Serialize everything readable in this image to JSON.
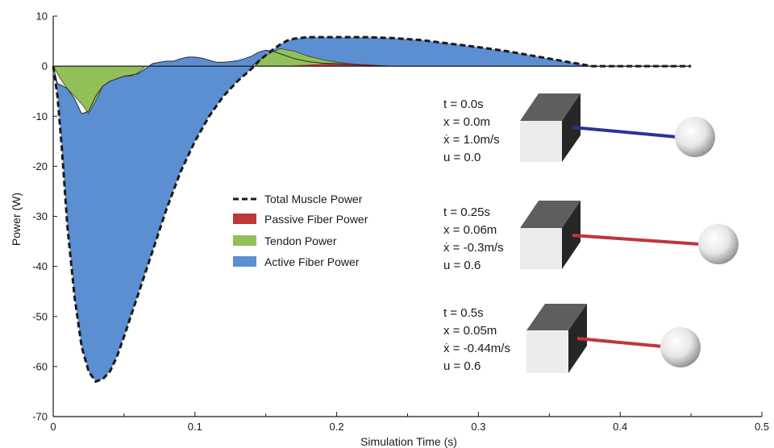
{
  "chart_data": {
    "type": "area",
    "xlabel": "Simulation Time (s)",
    "ylabel": "Power (W)",
    "xlim": [
      0,
      0.5
    ],
    "ylim": [
      -70,
      10
    ],
    "x_ticks": [
      0,
      0.1,
      0.2,
      0.3,
      0.4,
      0.5
    ],
    "x_tick_labels": [
      "0",
      "0.1",
      "0.2",
      "0.3",
      "0.4",
      "0.5"
    ],
    "y_ticks": [
      10,
      0,
      -10,
      -20,
      -30,
      -40,
      -50,
      -60,
      -70
    ],
    "y_tick_labels": [
      "10",
      "0",
      "-10",
      "-20",
      "-30",
      "-40",
      "-50",
      "-60",
      "-70"
    ],
    "grid": false,
    "legend_position": "center",
    "colors": {
      "total": "#1a1a1a",
      "passive": "#c0363a",
      "tendon": "#92c058",
      "active": "#5b8fd2"
    },
    "legend": [
      {
        "key": "total",
        "label": "Total Muscle Power",
        "style": "dashed"
      },
      {
        "key": "passive",
        "label": "Passive Fiber Power",
        "style": "swatch"
      },
      {
        "key": "tendon",
        "label": "Tendon Power",
        "style": "swatch"
      },
      {
        "key": "active",
        "label": "Active Fiber Power",
        "style": "swatch"
      }
    ],
    "series": [
      {
        "name": "Total Muscle Power",
        "key": "total",
        "x": [
          0,
          0.003,
          0.006,
          0.01,
          0.015,
          0.02,
          0.025,
          0.03,
          0.035,
          0.04,
          0.045,
          0.05,
          0.06,
          0.07,
          0.08,
          0.09,
          0.1,
          0.11,
          0.12,
          0.13,
          0.14,
          0.145,
          0.15,
          0.155,
          0.16,
          0.165,
          0.17,
          0.18,
          0.2,
          0.22,
          0.24,
          0.26,
          0.28,
          0.3,
          0.32,
          0.34,
          0.36,
          0.37,
          0.38,
          0.4,
          0.45
        ],
        "y": [
          0,
          -6,
          -16,
          -32,
          -46,
          -56,
          -61,
          -63,
          -62.5,
          -61,
          -58,
          -54,
          -45.5,
          -37,
          -28.5,
          -21,
          -15,
          -10,
          -6,
          -3,
          -0.5,
          1,
          2.2,
          3.3,
          4.3,
          5.1,
          5.5,
          5.8,
          5.8,
          5.8,
          5.6,
          5.2,
          4.5,
          3.8,
          3.0,
          2.0,
          1.0,
          0.5,
          0,
          0,
          0
        ]
      },
      {
        "name": "Passive Fiber Power",
        "key": "passive",
        "x": [
          0.16,
          0.18,
          0.2,
          0.22,
          0.24
        ],
        "y": [
          0,
          0.3,
          0.6,
          0.4,
          0
        ]
      },
      {
        "name": "Tendon Power",
        "key": "tendon",
        "x": [
          0,
          0.005,
          0.01,
          0.015,
          0.02,
          0.025,
          0.03,
          0.035,
          0.04,
          0.045,
          0.05,
          0.055,
          0.06,
          0.065,
          0.07,
          0.075,
          0.08,
          0.085,
          0.09,
          0.095,
          0.1,
          0.11,
          0.12,
          0.13,
          0.14,
          0.15,
          0.16,
          0.17,
          0.18,
          0.19,
          0.2,
          0.21,
          0.22,
          0.23,
          0.24
        ],
        "y": [
          0,
          -2.5,
          -4.5,
          -6,
          -7.5,
          -9.5,
          -7,
          -4,
          -3,
          -2.5,
          -2,
          -2,
          -1.3,
          0,
          0,
          0,
          0,
          0,
          0,
          0,
          0,
          0,
          0,
          0,
          0,
          2.2,
          3.5,
          3,
          2,
          1.3,
          0.8,
          0.5,
          0.3,
          0.1,
          0
        ]
      },
      {
        "name": "Active Fiber Power",
        "key": "active",
        "x": [
          0,
          0.003,
          0.006,
          0.01,
          0.015,
          0.02,
          0.025,
          0.03,
          0.035,
          0.04,
          0.045,
          0.05,
          0.055,
          0.06,
          0.065,
          0.07,
          0.075,
          0.08,
          0.085,
          0.09,
          0.095,
          0.1,
          0.105,
          0.11,
          0.115,
          0.12,
          0.125,
          0.13,
          0.135,
          0.14,
          0.145,
          0.15,
          0.155,
          0.16,
          0.17,
          0.18,
          0.19,
          0.2,
          0.21,
          0.22,
          0.23,
          0.24,
          0.26,
          0.28,
          0.3,
          0.32,
          0.34,
          0.36,
          0.37,
          0.38,
          0.4,
          0.45
        ],
        "y": [
          0,
          -3.5,
          -3.8,
          -4.5,
          -6.5,
          -9.5,
          -9,
          -6,
          -4,
          -3,
          -2.5,
          -2,
          -1.8,
          -1.5,
          -0.5,
          0.5,
          0.8,
          1.0,
          1.0,
          1.5,
          1.8,
          1.8,
          1.6,
          1.2,
          0.8,
          0.8,
          0.9,
          1.1,
          1.5,
          2.0,
          2.8,
          3.2,
          3.0,
          2.5,
          1.5,
          0.9,
          0.6,
          0.5,
          0.3,
          0.2,
          0.1,
          0,
          0,
          0,
          0,
          0,
          0,
          0,
          0,
          0,
          0,
          0
        ]
      }
    ]
  },
  "states": [
    {
      "lines": [
        "t = 0.0s",
        "x = 0.0m",
        "ẋ = 1.0m/s",
        "u = 0.0"
      ],
      "tendon_color": "#2c3590"
    },
    {
      "lines": [
        "t = 0.25s",
        "x = 0.06m",
        "ẋ = -0.3m/s",
        "u = 0.6"
      ],
      "tendon_color": "#c0363a"
    },
    {
      "lines": [
        "t = 0.5s",
        "x = 0.05m",
        "ẋ = -0.44m/s",
        "u = 0.6"
      ],
      "tendon_color": "#c0363a"
    }
  ]
}
